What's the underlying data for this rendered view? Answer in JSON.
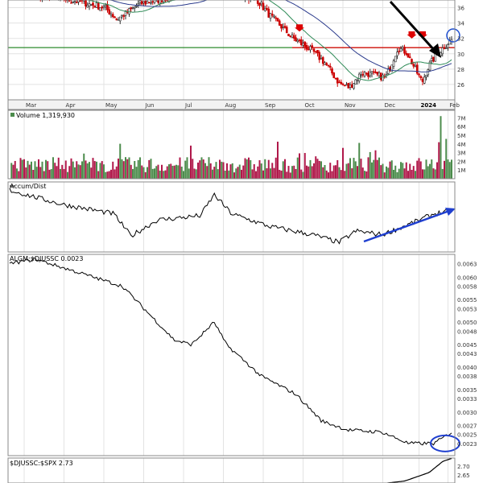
{
  "chart_data": [
    {
      "type": "candlestick",
      "panel": "price",
      "months": [
        "Mar",
        "Apr",
        "May",
        "Jun",
        "Jul",
        "Aug",
        "Sep",
        "Oct",
        "Nov",
        "Dec",
        "2024",
        "Feb"
      ],
      "y_ticks": [
        26,
        28,
        30,
        32,
        34,
        36
      ],
      "ylim": [
        24,
        37
      ],
      "horizontal_line_level": 30.8,
      "ma_series": [
        {
          "name": "",
          "color": "#2e8b57"
        },
        {
          "name": "",
          "color": "#2a3a8c"
        }
      ],
      "colors": {
        "up": "#3a7d3a",
        "down": "#cc0000",
        "resistance": "#2e8b2e",
        "recent_resistance": "#dd0000",
        "arrow": "#000000",
        "circle": "#1f4fd0"
      }
    },
    {
      "type": "bar",
      "panel": "volume",
      "legend": "Volume 1,319,930",
      "y_ticks": [
        "1M",
        "2M",
        "3M",
        "4M",
        "5M",
        "6M",
        "7M"
      ],
      "ylim": [
        0,
        7.5
      ],
      "colors": {
        "up": "#4c8c4c",
        "down": "#b0184a"
      }
    },
    {
      "type": "line",
      "panel": "accum_dist",
      "legend": "Accum/Dist",
      "colors": {
        "line": "#000000",
        "trend_arrow": "#1f3fd0"
      }
    },
    {
      "type": "line",
      "panel": "ratio",
      "legend": "ALGM:$DJUSSC 0.0023",
      "y_ticks": [
        "0.0023",
        "0.0025",
        "0.0027",
        "0.0030",
        "0.0033",
        "0.0035",
        "0.0038",
        "0.0040",
        "0.0043",
        "0.0045",
        "0.0048",
        "0.0050",
        "0.0053",
        "0.0055",
        "0.0058",
        "0.0060",
        "0.0063"
      ],
      "y_tick_values": [
        0.0023,
        0.0025,
        0.0027,
        0.003,
        0.0033,
        0.0035,
        0.0038,
        0.004,
        0.0043,
        0.0045,
        0.0048,
        0.005,
        0.0053,
        0.0055,
        0.0058,
        0.006,
        0.0063
      ],
      "colors": {
        "line": "#000000",
        "circle": "#1f3fd0"
      }
    },
    {
      "type": "line",
      "panel": "sector_ratio",
      "legend": "$DJUSSC:$SPX 2.73",
      "y_ticks": [
        "2.70",
        "2.65"
      ],
      "colors": {
        "line": "#000000"
      }
    }
  ]
}
